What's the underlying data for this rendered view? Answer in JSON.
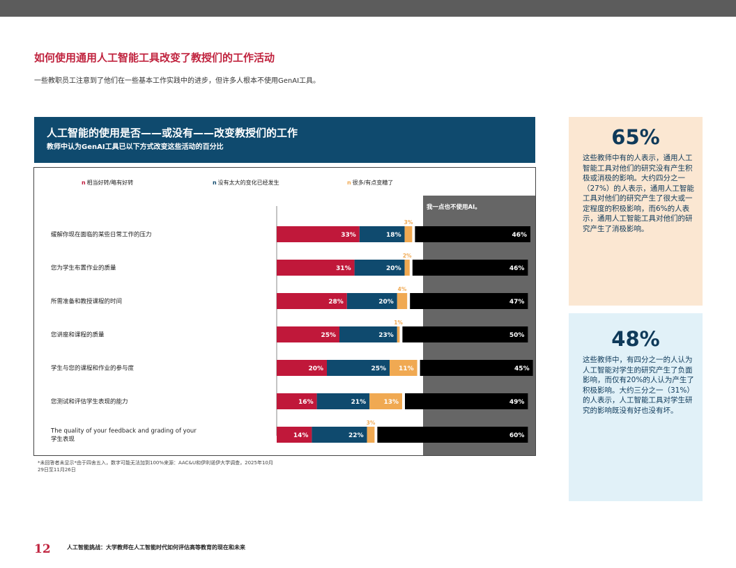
{
  "page": {
    "title": "如何使用通用人工智能工具改变了教授们的工作活动",
    "subtitle": "一些教职员工注意到了他们在一些基本工作实践中的进步，但许多人根本不使用GenAI工具。",
    "footnote": "*未回答者未显示*由于四舍五入，数字可能无法加到100%来源：AAC&U和伊利诺伊大学调查，2025年10月29日至11月26日",
    "page_number": "12",
    "footer_text": "人工智能挑战：大学教师在人工智能时代如何评估高等教育的现在和未来"
  },
  "chart_header": {
    "title": "人工智能的使用是否——或没有——改变教授们的工作",
    "subtitle": "教师中认为GenAI工具已以下方式改变这些活动的百分比"
  },
  "callouts": [
    {
      "stat": "65%",
      "text": "这些教师中有的人表示，通用人工智能工具对他们的研究没有产生积极或消极的影响。大约四分之一（27%）的人表示，通用人工智能工具对他们的研究产生了很大或一定程度的积极影响，而6%的人表示，通用人工智能工具对他们的研究产生了消极影响。"
    },
    {
      "stat": "48%",
      "text": "这些教师中，有四分之一的人认为人工智能对学生的研究产生了负面影响，而仅有20%的人认为产生了积极影响。大约三分之一（31%）的人表示，人工智能工具对学生研究的影响既没有好也没有坏。"
    }
  ],
  "colors": {
    "better": "#c0183a",
    "no_change": "#0f4a6e",
    "worse": "#f0a952",
    "not_used": "#000000",
    "not_used_panel": "#666666",
    "header_bg": "#0f4a6e",
    "accent": "#c0233e"
  },
  "chart_data": {
    "type": "bar",
    "orientation": "horizontal",
    "stacked": true,
    "value_unit": "%",
    "legend_position": "top",
    "categories": [
      "缓解你现在面临的某些日常工作的压力",
      "您为学生布置作业的质量",
      "所需准备和教授课程的时间",
      "您讲座和课程的质量",
      "学生与您的课程和作业的参与度",
      "您测试和评估学生表现的能力",
      "The quality of your feedback and grading of your 学生表现"
    ],
    "series": [
      {
        "name": "相当好转/略有好转",
        "values": [
          33,
          31,
          28,
          25,
          20,
          16,
          14
        ]
      },
      {
        "name": "没有太大的变化已经发生",
        "values": [
          18,
          20,
          20,
          23,
          25,
          21,
          22
        ]
      },
      {
        "name": "很多/有点变糟了",
        "values": [
          3,
          2,
          4,
          1,
          11,
          13,
          3
        ]
      },
      {
        "name": "我一点也不使用AI。",
        "values": [
          46,
          46,
          47,
          50,
          45,
          49,
          60
        ]
      }
    ]
  }
}
